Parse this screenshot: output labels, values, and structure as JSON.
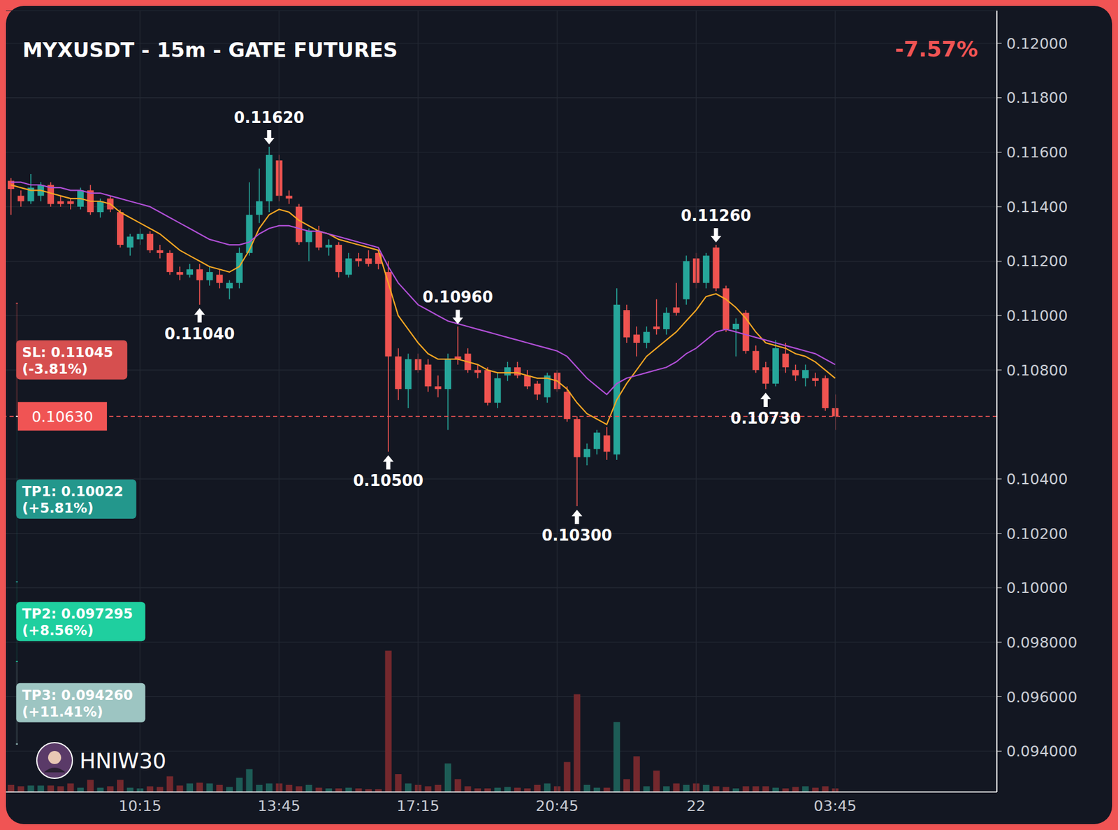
{
  "chart_data": {
    "type": "candlestick",
    "title": "MYXUSDT - 15m - GATE FUTURES",
    "change": {
      "value": -7.57,
      "label": "-7.57%"
    },
    "categories": [
      null,
      null,
      null,
      null,
      null,
      null,
      null,
      null,
      null,
      null,
      null,
      null,
      null,
      "10:15",
      null,
      null,
      null,
      null,
      null,
      null,
      null,
      null,
      null,
      null,
      null,
      null,
      null,
      "13:45",
      null,
      null,
      null,
      null,
      null,
      null,
      null,
      null,
      null,
      null,
      null,
      null,
      null,
      "17:15",
      null,
      null,
      null,
      null,
      null,
      null,
      null,
      null,
      null,
      null,
      null,
      null,
      null,
      "20:45",
      null,
      null,
      null,
      null,
      null,
      null,
      null,
      null,
      null,
      null,
      null,
      null,
      null,
      "22",
      null,
      null,
      null,
      null,
      null,
      null,
      null,
      null,
      null,
      null,
      null,
      null,
      null,
      "03:45"
    ],
    "open": [
      0.11495,
      0.1144,
      0.1142,
      0.1144,
      0.1148,
      0.1142,
      0.1142,
      0.114,
      0.1146,
      0.1138,
      0.1143,
      0.1138,
      0.1125,
      0.1128,
      0.113,
      0.1124,
      0.1123,
      0.1116,
      0.1115,
      0.1117,
      0.1113,
      0.1115,
      0.111,
      0.1112,
      0.1123,
      0.1137,
      0.1142,
      0.1157,
      0.1144,
      0.114,
      0.1127,
      0.1131,
      0.1125,
      0.1126,
      0.1115,
      0.1121,
      0.1121,
      0.1123,
      0.1116,
      0.1085,
      0.1073,
      0.1084,
      0.1082,
      0.1074,
      0.1073,
      0.1085,
      0.1086,
      0.108,
      0.108,
      0.1068,
      0.1078,
      0.1081,
      0.1078,
      0.1075,
      0.107,
      0.1079,
      0.1072,
      0.1062,
      0.1048,
      0.1051,
      0.1056,
      0.1049,
      0.1102,
      0.1093,
      0.109,
      0.1096,
      0.1095,
      0.1103,
      0.1106,
      0.1121,
      0.1112,
      0.1125,
      0.111,
      0.1095,
      0.1101,
      0.1087,
      0.1081,
      0.1075,
      0.1086,
      0.108,
      0.1077,
      0.1077,
      0.1077,
      0.1066
    ],
    "high": [
      0.11505,
      0.1146,
      0.1152,
      0.1149,
      0.1149,
      0.1144,
      0.1143,
      0.1147,
      0.1148,
      0.1143,
      0.1144,
      0.1139,
      0.113,
      0.1132,
      0.1131,
      0.1126,
      0.1124,
      0.1118,
      0.1119,
      0.1119,
      0.1118,
      0.1117,
      0.1113,
      0.1125,
      0.1149,
      0.1154,
      0.1162,
      0.1159,
      0.1146,
      0.1141,
      0.1132,
      0.1133,
      0.1128,
      0.1127,
      0.1123,
      0.1123,
      0.1124,
      0.1124,
      0.112,
      0.1088,
      0.1086,
      0.1086,
      0.1084,
      0.1078,
      0.1086,
      0.1096,
      0.1088,
      0.1082,
      0.1081,
      0.1079,
      0.1083,
      0.1083,
      0.108,
      0.1076,
      0.1079,
      0.108,
      0.1074,
      0.1063,
      0.1053,
      0.1058,
      0.1059,
      0.111,
      0.1104,
      0.1096,
      0.1096,
      0.1106,
      0.1103,
      0.1112,
      0.1122,
      0.1123,
      0.1123,
      0.1126,
      0.1111,
      0.1099,
      0.1102,
      0.1089,
      0.1083,
      0.1091,
      0.109,
      0.1082,
      0.1082,
      0.1079,
      0.1078,
      0.1071
    ],
    "low": [
      0.1137,
      0.114,
      0.1141,
      0.1142,
      0.114,
      0.114,
      0.1139,
      0.1139,
      0.1137,
      0.1136,
      0.1138,
      0.1125,
      0.1122,
      0.1126,
      0.1123,
      0.1121,
      0.1115,
      0.1113,
      0.1114,
      0.1104,
      0.1111,
      0.111,
      0.1106,
      0.111,
      0.1122,
      0.1134,
      0.1138,
      0.1142,
      0.1141,
      0.1126,
      0.112,
      0.1124,
      0.1122,
      0.1114,
      0.1114,
      0.1118,
      0.1118,
      0.1117,
      0.105,
      0.1069,
      0.1066,
      0.1079,
      0.1072,
      0.107,
      0.1058,
      0.1082,
      0.1079,
      0.1077,
      0.1067,
      0.1066,
      0.1076,
      0.1077,
      0.1073,
      0.1069,
      0.1068,
      0.1072,
      0.1061,
      0.103,
      0.1045,
      0.1049,
      0.1047,
      0.1047,
      0.109,
      0.1085,
      0.1088,
      0.1093,
      0.1093,
      0.11,
      0.1104,
      0.111,
      0.111,
      0.1109,
      0.1094,
      0.1085,
      0.1086,
      0.1079,
      0.1073,
      0.1074,
      0.1079,
      0.1076,
      0.1074,
      0.1074,
      0.1065,
      0.1058
    ],
    "close": [
      0.11465,
      0.1142,
      0.1147,
      0.1148,
      0.1141,
      0.1141,
      0.1141,
      0.1146,
      0.1138,
      0.1142,
      0.1139,
      0.1126,
      0.1129,
      0.113,
      0.1124,
      0.1123,
      0.1116,
      0.1115,
      0.1117,
      0.1113,
      0.1116,
      0.1112,
      0.1112,
      0.1123,
      0.1137,
      0.1142,
      0.1159,
      0.1144,
      0.1143,
      0.1127,
      0.1131,
      0.1125,
      0.1126,
      0.1116,
      0.1121,
      0.112,
      0.1119,
      0.1119,
      0.1085,
      0.1073,
      0.1084,
      0.108,
      0.1074,
      0.1073,
      0.1084,
      0.1084,
      0.108,
      0.1079,
      0.1068,
      0.1077,
      0.1081,
      0.1078,
      0.1074,
      0.1071,
      0.1078,
      0.1073,
      0.1062,
      0.1048,
      0.1051,
      0.1057,
      0.105,
      0.1104,
      0.1092,
      0.109,
      0.1094,
      0.1095,
      0.1101,
      0.1101,
      0.112,
      0.1112,
      0.1122,
      0.111,
      0.1095,
      0.1097,
      0.1087,
      0.108,
      0.1075,
      0.1088,
      0.1081,
      0.1078,
      0.108,
      0.1076,
      0.1066,
      0.1063
    ],
    "series": [
      {
        "type": "line",
        "color": "#f5a623",
        "values": [
          0.1148,
          0.1147,
          0.1146,
          0.1146,
          0.1145,
          0.1144,
          0.1143,
          0.1143,
          0.1142,
          0.1142,
          0.1141,
          0.1138,
          0.1136,
          0.1134,
          0.1132,
          0.113,
          0.1127,
          0.1124,
          0.1122,
          0.112,
          0.1118,
          0.1117,
          0.1116,
          0.1118,
          0.1124,
          0.1132,
          0.1137,
          0.1139,
          0.1138,
          0.1135,
          0.1133,
          0.1131,
          0.113,
          0.1128,
          0.1127,
          0.1126,
          0.1125,
          0.1124,
          0.1112,
          0.11,
          0.1095,
          0.109,
          0.1086,
          0.1084,
          0.1084,
          0.1084,
          0.1083,
          0.1082,
          0.108,
          0.1079,
          0.1079,
          0.1079,
          0.1078,
          0.1077,
          0.1077,
          0.1076,
          0.1073,
          0.1068,
          0.1064,
          0.1062,
          0.106,
          0.1069,
          0.1075,
          0.108,
          0.1085,
          0.1088,
          0.1091,
          0.1094,
          0.1098,
          0.1102,
          0.1107,
          0.1108,
          0.1106,
          0.1103,
          0.1099,
          0.1094,
          0.109,
          0.1089,
          0.1088,
          0.1086,
          0.1085,
          0.1083,
          0.108,
          0.1077
        ]
      },
      {
        "type": "line",
        "color": "#b04fd6",
        "values": [
          0.1149,
          0.1149,
          0.1148,
          0.1148,
          0.1147,
          0.1147,
          0.1146,
          0.1146,
          0.1145,
          0.1145,
          0.1144,
          0.1143,
          0.1142,
          0.1141,
          0.114,
          0.1138,
          0.1136,
          0.1134,
          0.1132,
          0.113,
          0.1128,
          0.1127,
          0.1126,
          0.1126,
          0.1127,
          0.113,
          0.1132,
          0.1133,
          0.1133,
          0.1132,
          0.1131,
          0.1131,
          0.113,
          0.1129,
          0.1128,
          0.1127,
          0.1126,
          0.1125,
          0.1118,
          0.1112,
          0.1108,
          0.1104,
          0.1102,
          0.11,
          0.1098,
          0.1097,
          0.1096,
          0.1095,
          0.1094,
          0.1093,
          0.1092,
          0.1091,
          0.109,
          0.1089,
          0.1088,
          0.1087,
          0.1085,
          0.1081,
          0.1077,
          0.1074,
          0.1071,
          0.1075,
          0.1077,
          0.1078,
          0.1079,
          0.108,
          0.1081,
          0.1083,
          0.1086,
          0.1088,
          0.1091,
          0.1094,
          0.1095,
          0.1094,
          0.1093,
          0.1092,
          0.1091,
          0.109,
          0.1089,
          0.1088,
          0.1087,
          0.1086,
          0.1084,
          0.1082
        ]
      },
      {
        "type": "bar",
        "axis": "y2",
        "values": [
          10,
          8,
          9,
          9,
          9,
          8,
          12,
          6,
          17,
          6,
          8,
          17,
          6,
          5,
          8,
          7,
          22,
          9,
          12,
          13,
          12,
          10,
          7,
          20,
          32,
          10,
          12,
          12,
          10,
          8,
          10,
          6,
          5,
          5,
          6,
          5,
          4,
          4,
          198,
          25,
          12,
          10,
          8,
          10,
          40,
          18,
          8,
          5,
          5,
          6,
          7,
          6,
          5,
          10,
          12,
          8,
          42,
          137,
          10,
          6,
          6,
          98,
          18,
          50,
          8,
          30,
          8,
          12,
          10,
          12,
          10,
          8,
          7,
          5,
          8,
          8,
          8,
          6,
          5,
          7,
          8,
          6,
          8,
          5
        ]
      }
    ],
    "ylim": [
      0.0925,
      0.1212
    ],
    "yticks": [
      {
        "value": 0.12,
        "label": "0.12000"
      },
      {
        "value": 0.118,
        "label": "0.11800"
      },
      {
        "value": 0.116,
        "label": "0.11600"
      },
      {
        "value": 0.114,
        "label": "0.11400"
      },
      {
        "value": 0.112,
        "label": "0.11200"
      },
      {
        "value": 0.11,
        "label": "0.11000"
      },
      {
        "value": 0.108,
        "label": "0.10800"
      },
      {
        "value": 0.104,
        "label": "0.10400"
      },
      {
        "value": 0.102,
        "label": "0.10200"
      },
      {
        "value": 0.1,
        "label": "0.10000"
      },
      {
        "value": 0.098,
        "label": "0.098000"
      },
      {
        "value": 0.096,
        "label": "0.096000"
      },
      {
        "value": 0.094,
        "label": "0.094000"
      }
    ],
    "y2lim": [
      0,
      1095
    ],
    "grid": true,
    "annotations": [
      {
        "position": 26,
        "value": 0.1162,
        "label": "0.11620",
        "kind": "high"
      },
      {
        "position": 19,
        "value": 0.1104,
        "label": "0.11040",
        "kind": "low"
      },
      {
        "position": 38,
        "value": 0.105,
        "label": "0.10500",
        "kind": "low"
      },
      {
        "position": 45,
        "value": 0.1096,
        "label": "0.10960",
        "kind": "high"
      },
      {
        "position": 57,
        "value": 0.103,
        "label": "0.10300",
        "kind": "low"
      },
      {
        "position": 71,
        "value": 0.1126,
        "label": "0.11260",
        "kind": "high"
      },
      {
        "position": 76,
        "value": 0.1073,
        "label": "0.10730",
        "kind": "low"
      }
    ],
    "current_price": {
      "value": 0.1063,
      "label": "0.10630"
    },
    "levels": [
      {
        "value": 0.11045,
        "label": "SL: 0.11045",
        "change": -3.81,
        "change_label": "(-3.81%)",
        "color": "#d64f4f"
      },
      {
        "value": 0.10022,
        "label": "TP1: 0.10022",
        "change": 5.81,
        "change_label": "(+5.81%)",
        "color": "#23978c"
      },
      {
        "value": 0.097295,
        "label": "TP2: 0.097295",
        "change": 8.56,
        "change_label": "(+8.56%)",
        "color": "#1fcf9f"
      },
      {
        "value": 0.09426,
        "label": "TP3: 0.094260",
        "change": 11.41,
        "change_label": "(+11.41%)",
        "color": "#9dc5c2"
      }
    ],
    "watermark": "HNIW30"
  }
}
